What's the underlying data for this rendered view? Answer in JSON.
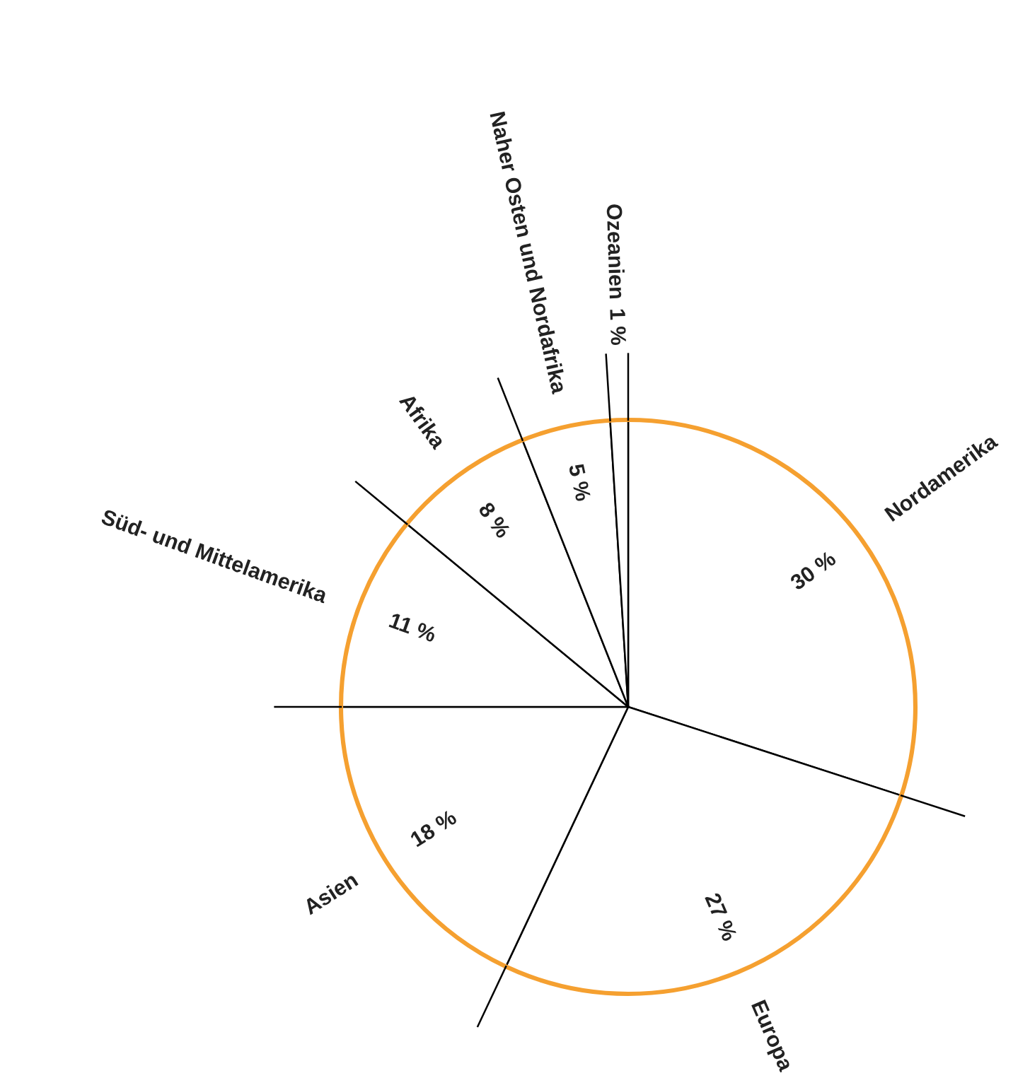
{
  "chart_data": {
    "type": "pie",
    "categories": [
      "Nordamerika",
      "Europa",
      "Asien",
      "Süd- und Mittelamerika",
      "Afrika",
      "Naher Osten und Nordafrika",
      "Ozeanien"
    ],
    "values": [
      30,
      27,
      18,
      11,
      8,
      5,
      1
    ],
    "value_labels": [
      "30 %",
      "27 %",
      "18 %",
      "11 %",
      "8 %",
      "5 %",
      "1 %"
    ],
    "colors": [
      "#ffffff",
      "#ffffff",
      "#ffffff",
      "#ffffff",
      "#ffffff",
      "#ffffff",
      "#ffffff"
    ]
  }
}
